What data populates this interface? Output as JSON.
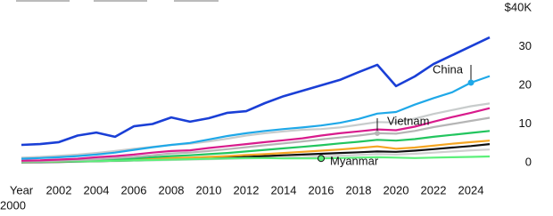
{
  "chart_data": {
    "type": "line",
    "x_label": "Year",
    "x": [
      2000,
      2001,
      2002,
      2003,
      2004,
      2005,
      2006,
      2007,
      2008,
      2009,
      2010,
      2011,
      2012,
      2013,
      2014,
      2015,
      2016,
      2017,
      2018,
      2019,
      2020,
      2021,
      2022,
      2023,
      2024,
      2025
    ],
    "xlim": [
      2000,
      2025
    ],
    "xticks": [
      2000,
      2002,
      2004,
      2006,
      2008,
      2010,
      2012,
      2014,
      2016,
      2018,
      2020,
      2022,
      2024
    ],
    "ylim": [
      -2,
      40
    ],
    "yticks": [
      0,
      10,
      20,
      30,
      {
        "value": 40,
        "label": "$40K"
      }
    ],
    "grid": false,
    "series": [
      {
        "color": "#cfcfcf",
        "values": [
          0.1,
          0.1,
          0.2,
          0.2,
          0.3,
          0.4,
          0.5,
          0.6,
          0.7,
          0.8,
          0.9,
          1,
          1.1,
          1.2,
          1.3,
          1.4,
          1.6,
          1.8,
          2,
          2.2,
          2.1,
          2.3,
          2.6,
          2.9,
          3.2,
          3.4
        ]
      },
      {
        "color": "#111111",
        "values": [
          0.1,
          0.15,
          0.2,
          0.3,
          0.4,
          0.5,
          0.6,
          0.8,
          0.9,
          1,
          1.2,
          1.3,
          1.5,
          1.7,
          1.9,
          2.1,
          2.3,
          2.5,
          2.7,
          2.9,
          2.8,
          3.1,
          3.5,
          3.9,
          4.3,
          4.8
        ]
      },
      {
        "color": "#f5a623",
        "values": [
          0.2,
          0.25,
          0.3,
          0.4,
          0.5,
          0.6,
          0.8,
          1,
          1.2,
          1.3,
          1.5,
          1.7,
          2,
          2.2,
          2.5,
          2.8,
          3.1,
          3.4,
          3.8,
          4.2,
          3.6,
          3.9,
          4.4,
          4.9,
          5.3,
          5.7
        ]
      },
      {
        "color": "#22c55e",
        "values": [
          0.2,
          0.3,
          0.4,
          0.5,
          0.7,
          0.9,
          1.1,
          1.4,
          1.7,
          1.9,
          2.2,
          2.5,
          2.9,
          3.3,
          3.7,
          4.1,
          4.5,
          5,
          5.4,
          5.9,
          5.7,
          6.1,
          6.7,
          7.2,
          7.7,
          8.2
        ]
      },
      {
        "color": "#5cf07a",
        "values": [
          0.2,
          0.25,
          0.3,
          0.35,
          0.4,
          0.5,
          0.6,
          0.7,
          0.8,
          0.9,
          1,
          1.1,
          1.2,
          1.2,
          1.1,
          1.1,
          1.1,
          1.2,
          1.3,
          1.4,
          1.3,
          1.2,
          1.3,
          1.4,
          1.5,
          1.6
        ]
      },
      {
        "color": "#b5b5b5",
        "values": [
          0.3,
          0.4,
          0.5,
          0.7,
          0.9,
          1.2,
          1.5,
          1.9,
          2.4,
          2.6,
          3,
          3.5,
          4,
          4.5,
          5,
          5.5,
          6,
          6.5,
          7,
          7.6,
          7.5,
          8.2,
          9.2,
          10,
          10.8,
          11.6
        ]
      },
      {
        "color": "#d81b8c",
        "values": [
          0.5,
          0.6,
          0.8,
          1,
          1.4,
          1.7,
          2.1,
          2.6,
          3,
          3.2,
          3.8,
          4.3,
          4.8,
          5.3,
          5.8,
          6.3,
          7,
          7.6,
          8.1,
          8.6,
          8.4,
          9.3,
          10.6,
          11.8,
          12.9,
          14.1
        ]
      },
      {
        "color": "#c8cccc",
        "values": [
          1.3,
          1.5,
          1.8,
          2.1,
          2.5,
          3,
          3.6,
          4.1,
          4.6,
          4.9,
          5.5,
          6.2,
          7,
          7.6,
          8.1,
          8.5,
          8.7,
          9.1,
          9.8,
          10.5,
          10.4,
          11.4,
          12.6,
          13.6,
          14.6,
          15.3
        ]
      },
      {
        "color": "#1fa8e8",
        "values": [
          1,
          1.2,
          1.4,
          1.7,
          2.1,
          2.6,
          3.3,
          4,
          4.6,
          5.1,
          6,
          6.9,
          7.6,
          8.2,
          8.7,
          9.1,
          9.6,
          10.3,
          11.3,
          12.7,
          13.1,
          15,
          16.7,
          18.2,
          20.7,
          22.4
        ]
      },
      {
        "color": "#1a3fd6",
        "values": [
          4.6,
          4.8,
          5.3,
          7,
          7.8,
          6.7,
          9.4,
          10,
          11.7,
          10.6,
          11.5,
          12.9,
          13.3,
          15.4,
          17.2,
          18.6,
          20,
          21.4,
          23.4,
          25.3,
          19.8,
          22.3,
          25.5,
          27.8,
          30.1,
          32.4
        ]
      }
    ],
    "annotations": [
      {
        "text": "China",
        "series": 8,
        "x": 2024
      },
      {
        "text": "Vietnam",
        "series": 5,
        "x": 2019
      },
      {
        "text": "Myanmar",
        "series": 4,
        "x": 2016
      }
    ]
  }
}
